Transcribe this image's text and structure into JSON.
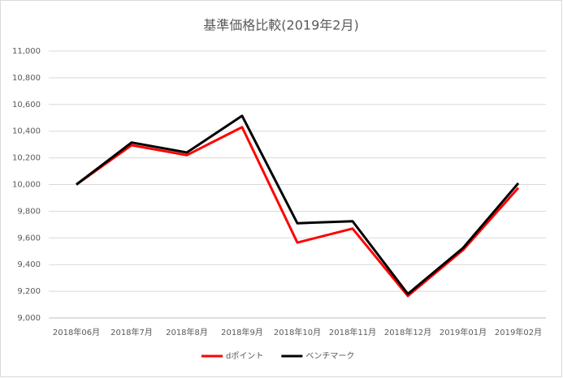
{
  "chart_data": {
    "type": "line",
    "title": "基準価格比較(2019年2月)",
    "categories": [
      "2018年06月",
      "2018年7月",
      "2018年8月",
      "2018年9月",
      "2018年10月",
      "2018年11月",
      "2018年12月",
      "2019年01月",
      "2019年02月"
    ],
    "series": [
      {
        "name": "dポイント",
        "color": "#ff0000",
        "values": [
          10000,
          10295,
          10220,
          10430,
          9565,
          9670,
          9165,
          9510,
          9975
        ]
      },
      {
        "name": "ベンチマーク",
        "color": "#000000",
        "values": [
          10000,
          10315,
          10240,
          10515,
          9710,
          9725,
          9180,
          9525,
          10010
        ]
      }
    ],
    "ylim": [
      9000,
      11000
    ],
    "yticks": [
      {
        "value": 9000,
        "label": "9,000"
      },
      {
        "value": 9200,
        "label": "9,200"
      },
      {
        "value": 9400,
        "label": "9,400"
      },
      {
        "value": 9600,
        "label": "9,600"
      },
      {
        "value": 9800,
        "label": "9,800"
      },
      {
        "value": 10000,
        "label": "10,000"
      },
      {
        "value": 10200,
        "label": "10,200"
      },
      {
        "value": 10400,
        "label": "10,400"
      },
      {
        "value": 10600,
        "label": "10,600"
      },
      {
        "value": 10800,
        "label": "10,800"
      },
      {
        "value": 11000,
        "label": "11,000"
      }
    ],
    "grid": true,
    "legend": "bottom"
  }
}
